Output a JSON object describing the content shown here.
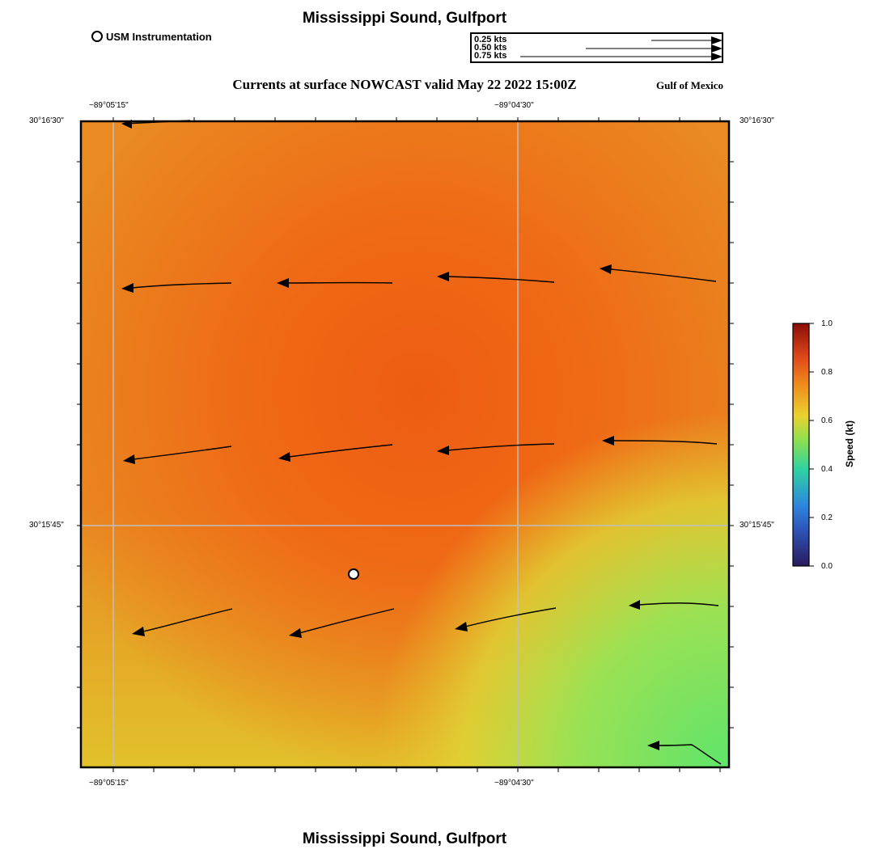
{
  "header": {
    "title": "Mississippi Sound, Gulfport",
    "subtitle": "Currents at surface NOWCAST valid May 22 2022 15:00Z",
    "region": "Gulf of Mexico",
    "footer_title": "Mississippi Sound, Gulfport"
  },
  "station_legend": {
    "label": "USM Instrumentation",
    "icon": "circle-marker-icon"
  },
  "vector_scale": {
    "entries": [
      "0.25 kts",
      "0.50 kts",
      "0.75 kts"
    ],
    "speeds": [
      0.25,
      0.5,
      0.75
    ]
  },
  "map": {
    "lon_ticks": [
      "−89°05'15\"",
      "−89°04'30\""
    ],
    "lat_ticks": [
      "30°16'30\"",
      "30°15'45\""
    ],
    "background_colors": {
      "high": "#ee5e14",
      "mid": "#e9931f",
      "low_yellow": "#e3c42a",
      "low_green": "#64e46a"
    }
  },
  "colorbar": {
    "label": "Speed (kt)",
    "ticks": [
      "0.0",
      "0.2",
      "0.4",
      "0.6",
      "0.8",
      "1.0"
    ],
    "range": [
      0.0,
      1.0
    ],
    "colors": [
      "#2a1a5e",
      "#2e86de",
      "#2fd3a0",
      "#a9e34a",
      "#ecd12f",
      "#ee8a1c",
      "#e0481a",
      "#8b0d07"
    ]
  }
}
